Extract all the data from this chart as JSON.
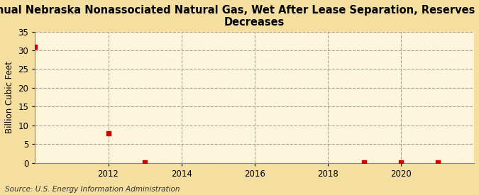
{
  "title": "Annual Nebraska Nonassociated Natural Gas, Wet After Lease Separation, Reserves Revision\nDecreases",
  "ylabel": "Billion Cubic Feet",
  "source": "Source: U.S. Energy Information Administration",
  "background_color": "#f5dfa0",
  "plot_background_color": "#fdf5dc",
  "years": [
    2010,
    2012,
    2013,
    2019,
    2020,
    2021
  ],
  "values": [
    31.0,
    7.8,
    0.05,
    0.05,
    0.1,
    0.05
  ],
  "xlim": [
    2010.0,
    2022.0
  ],
  "ylim": [
    0,
    35
  ],
  "yticks": [
    0,
    5,
    10,
    15,
    20,
    25,
    30,
    35
  ],
  "xticks": [
    2012,
    2014,
    2016,
    2018,
    2020
  ],
  "marker_color": "#cc0000",
  "marker_size": 4,
  "grid_color": "#b0a090",
  "title_fontsize": 10.5,
  "axis_label_fontsize": 8.5,
  "tick_fontsize": 8.5,
  "source_fontsize": 7.5
}
